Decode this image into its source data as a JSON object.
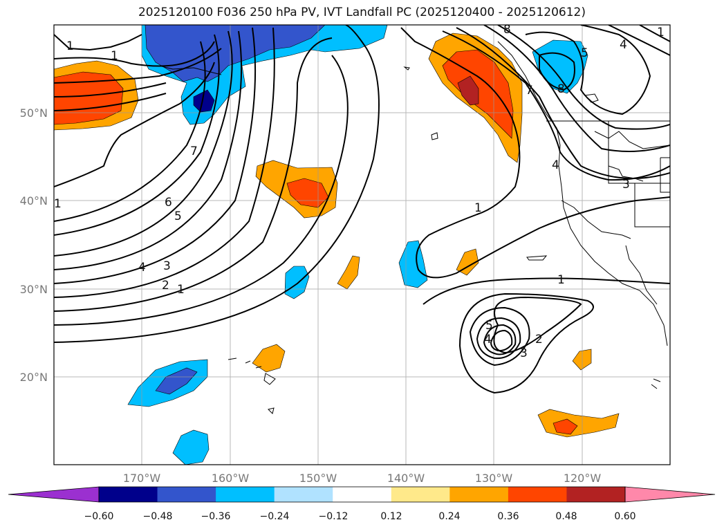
{
  "title": "2025120100 F036 250 hPa PV, IVT Landfall PC (2025120400 - 2025120612)",
  "map": {
    "projection": "PlateCarree",
    "lon_range": [
      -180,
      -110
    ],
    "lat_range": [
      10,
      60
    ],
    "lon_ticks": [
      -170,
      -160,
      -150,
      -140,
      -130,
      -120
    ],
    "lon_tick_labels": [
      "170°W",
      "160°W",
      "150°W",
      "140°W",
      "130°W",
      "120°W"
    ],
    "lat_ticks": [
      20,
      30,
      40,
      50
    ],
    "lat_tick_labels": [
      "20°N",
      "30°N",
      "40°N",
      "50°N"
    ],
    "grid": true
  },
  "colorbar": {
    "orientation": "horizontal",
    "extend": "both",
    "levels": [
      "−0.60",
      "−0.48",
      "−0.36",
      "−0.24",
      "−0.12",
      "0.12",
      "0.24",
      "0.36",
      "0.48",
      "0.60"
    ],
    "colors": [
      "#9b30d0",
      "#00008b",
      "#3355cc",
      "#00bfff",
      "#b0e2ff",
      "#ffffff",
      "#ffe98a",
      "#ffa500",
      "#ff4500",
      "#b22222",
      "#ff88aa"
    ]
  },
  "contours": {
    "field": "250 hPa PV",
    "labels": [
      "1",
      "1",
      "1",
      "7",
      "6",
      "5",
      "4",
      "3",
      "2",
      "1",
      "1",
      "8",
      "7",
      "5",
      "8",
      "4",
      "4",
      "3",
      "1",
      "1",
      "5",
      "4",
      "3",
      "2"
    ]
  }
}
